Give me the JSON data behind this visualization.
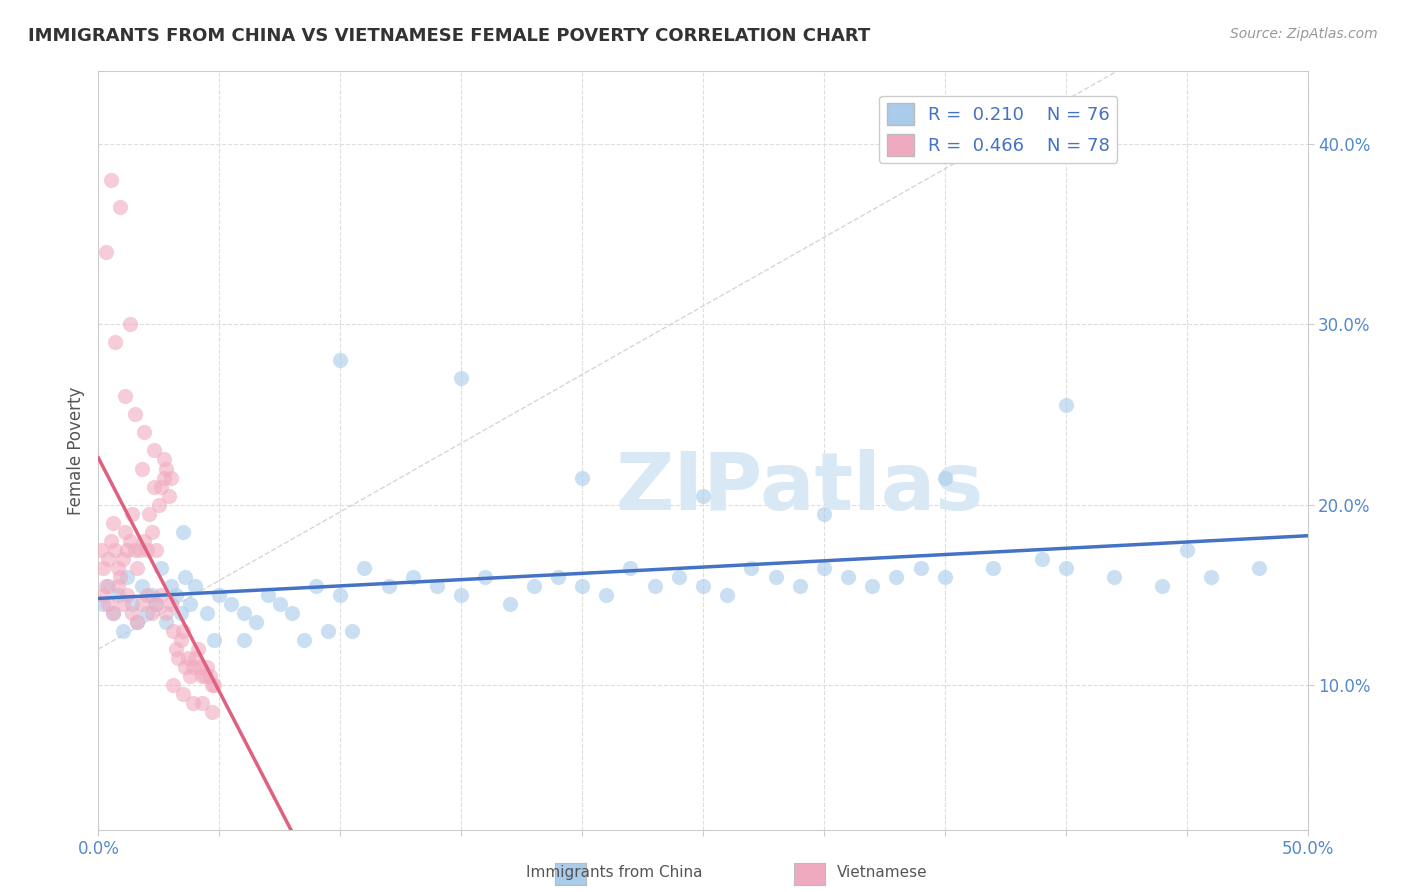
{
  "title": "IMMIGRANTS FROM CHINA VS VIETNAMESE FEMALE POVERTY CORRELATION CHART",
  "source": "Source: ZipAtlas.com",
  "ylabel": "Female Poverty",
  "xlim": [
    0.0,
    0.5
  ],
  "ylim": [
    0.02,
    0.44
  ],
  "legend_r_blue": "0.210",
  "legend_n_blue": "76",
  "legend_r_pink": "0.466",
  "legend_n_pink": "78",
  "blue_color": "#A8CCEA",
  "pink_color": "#F0AABF",
  "blue_line_color": "#4472C4",
  "pink_line_color": "#E06080",
  "watermark": "ZIPatlas",
  "china_x": [
    0.002,
    0.004,
    0.006,
    0.008,
    0.01,
    0.012,
    0.014,
    0.016,
    0.018,
    0.02,
    0.022,
    0.024,
    0.026,
    0.028,
    0.03,
    0.032,
    0.034,
    0.036,
    0.038,
    0.04,
    0.045,
    0.05,
    0.055,
    0.06,
    0.065,
    0.07,
    0.075,
    0.08,
    0.09,
    0.1,
    0.11,
    0.12,
    0.13,
    0.14,
    0.15,
    0.16,
    0.17,
    0.18,
    0.19,
    0.2,
    0.21,
    0.22,
    0.23,
    0.24,
    0.25,
    0.26,
    0.27,
    0.28,
    0.29,
    0.3,
    0.31,
    0.32,
    0.33,
    0.34,
    0.35,
    0.37,
    0.39,
    0.4,
    0.42,
    0.44,
    0.46,
    0.48,
    0.1,
    0.15,
    0.2,
    0.25,
    0.3,
    0.35,
    0.4,
    0.45,
    0.035,
    0.048,
    0.06,
    0.085,
    0.095,
    0.105
  ],
  "china_y": [
    0.145,
    0.155,
    0.14,
    0.15,
    0.13,
    0.16,
    0.145,
    0.135,
    0.155,
    0.14,
    0.15,
    0.145,
    0.165,
    0.135,
    0.155,
    0.15,
    0.14,
    0.16,
    0.145,
    0.155,
    0.14,
    0.15,
    0.145,
    0.14,
    0.135,
    0.15,
    0.145,
    0.14,
    0.155,
    0.15,
    0.165,
    0.155,
    0.16,
    0.155,
    0.15,
    0.16,
    0.145,
    0.155,
    0.16,
    0.155,
    0.15,
    0.165,
    0.155,
    0.16,
    0.155,
    0.15,
    0.165,
    0.16,
    0.155,
    0.165,
    0.16,
    0.155,
    0.16,
    0.165,
    0.16,
    0.165,
    0.17,
    0.165,
    0.16,
    0.155,
    0.16,
    0.165,
    0.28,
    0.27,
    0.215,
    0.205,
    0.195,
    0.215,
    0.255,
    0.175,
    0.185,
    0.125,
    0.125,
    0.125,
    0.13,
    0.13
  ],
  "viet_x": [
    0.001,
    0.002,
    0.003,
    0.004,
    0.005,
    0.006,
    0.007,
    0.008,
    0.009,
    0.01,
    0.011,
    0.012,
    0.013,
    0.014,
    0.015,
    0.016,
    0.017,
    0.018,
    0.019,
    0.02,
    0.021,
    0.022,
    0.023,
    0.024,
    0.025,
    0.026,
    0.027,
    0.028,
    0.029,
    0.03,
    0.031,
    0.032,
    0.033,
    0.034,
    0.035,
    0.036,
    0.037,
    0.038,
    0.039,
    0.04,
    0.041,
    0.042,
    0.043,
    0.044,
    0.045,
    0.046,
    0.047,
    0.048,
    0.002,
    0.004,
    0.006,
    0.008,
    0.01,
    0.012,
    0.014,
    0.016,
    0.018,
    0.02,
    0.022,
    0.024,
    0.026,
    0.028,
    0.03,
    0.003,
    0.007,
    0.011,
    0.015,
    0.019,
    0.023,
    0.027,
    0.031,
    0.035,
    0.039,
    0.043,
    0.047,
    0.005,
    0.009,
    0.013
  ],
  "viet_y": [
    0.175,
    0.165,
    0.155,
    0.17,
    0.18,
    0.19,
    0.175,
    0.165,
    0.16,
    0.17,
    0.185,
    0.175,
    0.18,
    0.195,
    0.175,
    0.165,
    0.175,
    0.22,
    0.18,
    0.175,
    0.195,
    0.185,
    0.21,
    0.175,
    0.2,
    0.21,
    0.215,
    0.22,
    0.205,
    0.215,
    0.13,
    0.12,
    0.115,
    0.125,
    0.13,
    0.11,
    0.115,
    0.105,
    0.11,
    0.115,
    0.12,
    0.11,
    0.105,
    0.105,
    0.11,
    0.105,
    0.1,
    0.1,
    0.15,
    0.145,
    0.14,
    0.155,
    0.145,
    0.15,
    0.14,
    0.135,
    0.145,
    0.15,
    0.14,
    0.145,
    0.15,
    0.14,
    0.145,
    0.34,
    0.29,
    0.26,
    0.25,
    0.24,
    0.23,
    0.225,
    0.1,
    0.095,
    0.09,
    0.09,
    0.085,
    0.38,
    0.365,
    0.3
  ]
}
